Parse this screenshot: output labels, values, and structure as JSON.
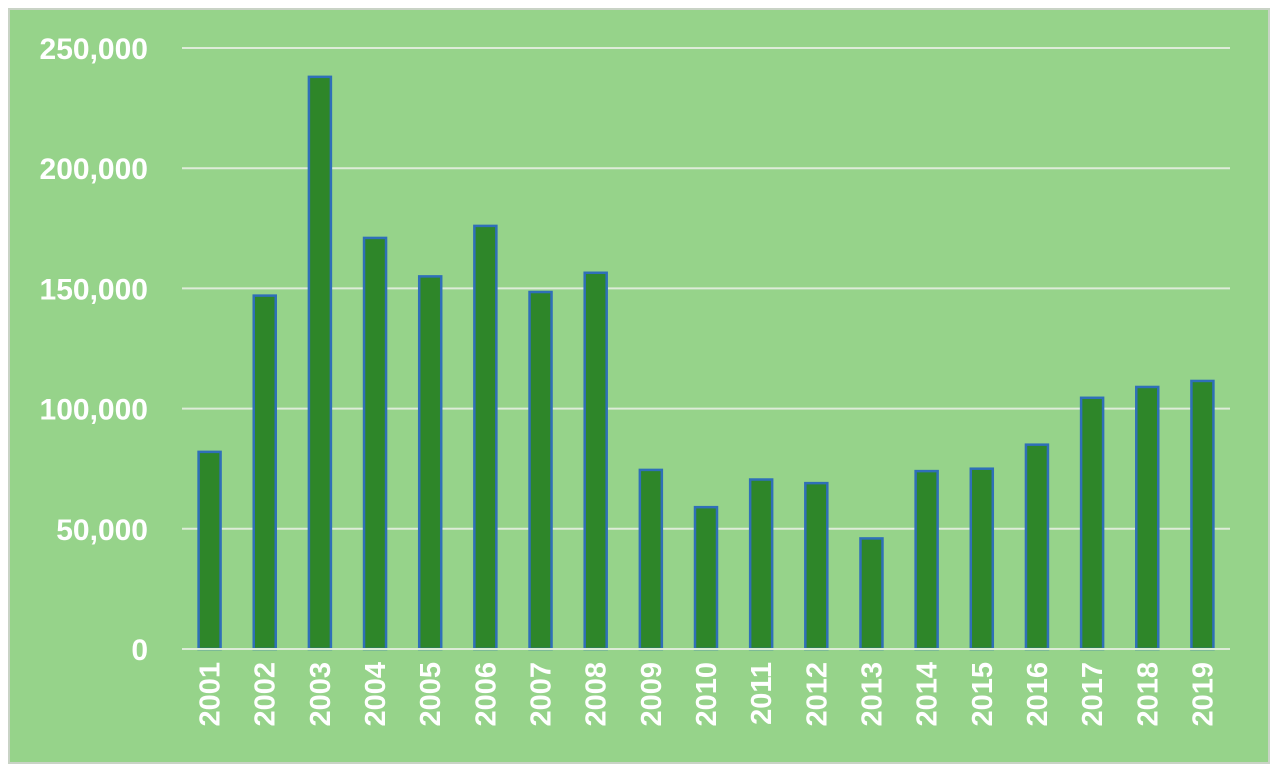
{
  "chart_data": {
    "type": "bar",
    "title": "",
    "xlabel": "",
    "ylabel": "",
    "categories": [
      "2001",
      "2002",
      "2003",
      "2004",
      "2005",
      "2006",
      "2007",
      "2008",
      "2009",
      "2010",
      "2011",
      "2012",
      "2013",
      "2014",
      "2015",
      "2016",
      "2017",
      "2018",
      "2019"
    ],
    "series": [
      {
        "values": [
          82000,
          147000,
          238000,
          171000,
          155000,
          176000,
          148500,
          156500,
          74500,
          59000,
          70500,
          69000,
          46000,
          74000,
          75000,
          85000,
          104500,
          109000,
          111500
        ]
      }
    ],
    "ylim": [
      0,
      250000
    ],
    "yticks": [
      0,
      50000,
      100000,
      150000,
      200000,
      250000
    ],
    "ytick_labels": [
      "0",
      "50,000",
      "100,000",
      "150,000",
      "200,000",
      "250,000"
    ],
    "grid": true,
    "legend": "none",
    "colors": {
      "background": "#96d38a",
      "bar_fill": "#2e8629",
      "bar_edge": "#2f6fb8",
      "gridline": "#ddecd8",
      "text": "#ffffff"
    }
  }
}
